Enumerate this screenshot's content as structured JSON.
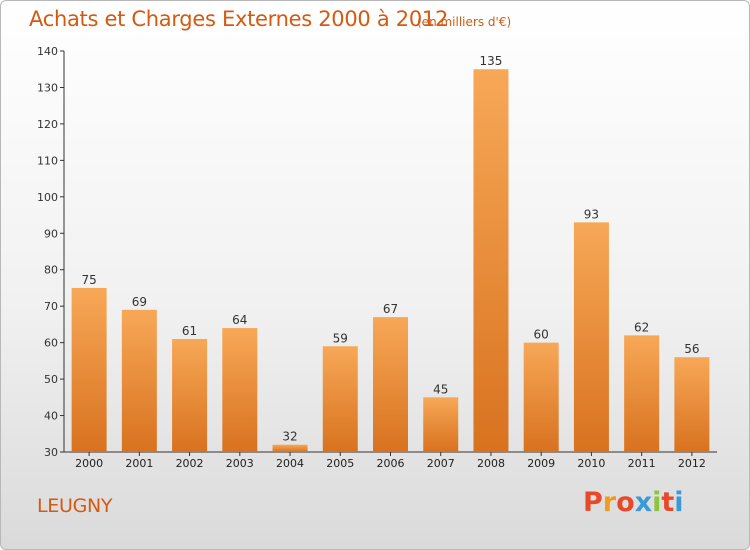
{
  "header": {
    "title": "Achats et Charges Externes 2000 à 2012",
    "unit_note": "(en milliers d'€)"
  },
  "footer": {
    "commune": "LEUGNY",
    "logo_text": "Proxiti"
  },
  "colors": {
    "bar_light": "#f7a857",
    "bar_dark": "#d8721f",
    "title": "#d45a12",
    "logo_letters": [
      "#e8492b",
      "#f39a1f",
      "#e8492b",
      "#3a9ad9",
      "#8cc540",
      "#e8492b",
      "#3a9ad9"
    ]
  },
  "chart_data": {
    "type": "bar",
    "title": "Achats et Charges Externes 2000 à 2012",
    "subtitle": "(en milliers d'€)",
    "categories": [
      "2000",
      "2001",
      "2002",
      "2003",
      "2004",
      "2005",
      "2006",
      "2007",
      "2008",
      "2009",
      "2010",
      "2011",
      "2012"
    ],
    "values": [
      75,
      69,
      61,
      64,
      32,
      59,
      67,
      45,
      135,
      60,
      93,
      62,
      56
    ],
    "ylim": [
      30,
      140
    ],
    "yticks": [
      30,
      40,
      50,
      60,
      70,
      80,
      90,
      100,
      110,
      120,
      130,
      140
    ],
    "xlabel": "",
    "ylabel": "",
    "grid": false,
    "legend": "none"
  }
}
